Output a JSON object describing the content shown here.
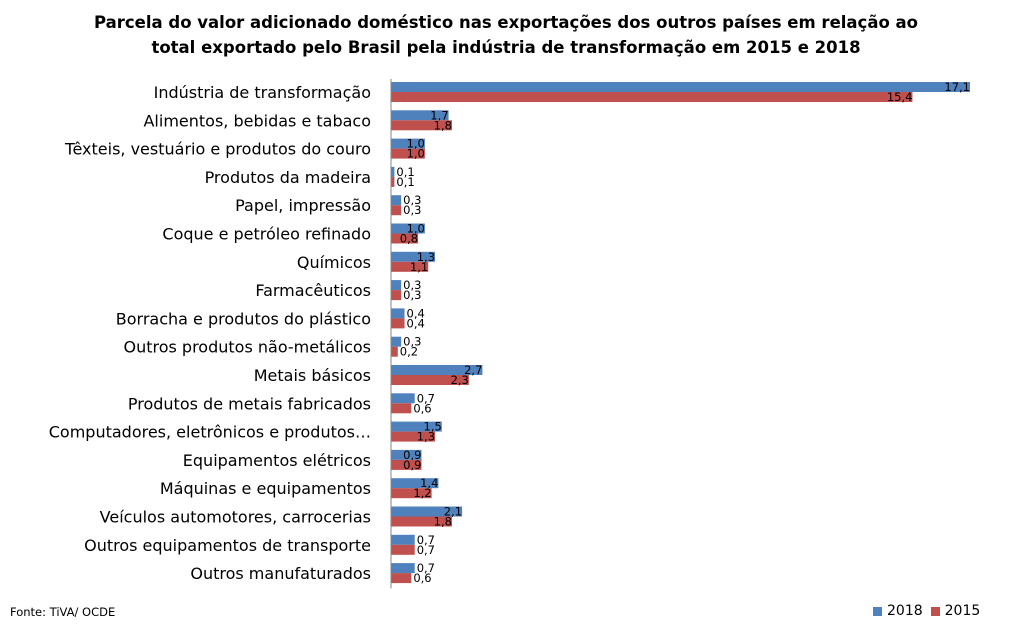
{
  "chart_data": {
    "type": "bar",
    "orientation": "horizontal",
    "title_lines": [
      "Parcela do valor adicionado  doméstico nas exportações dos outros  países em relação ao",
      "total exportado  pelo Brasil pela indústria  de transformação  em 2015 e 2018"
    ],
    "categories": [
      "Indústria de transformação",
      "Alimentos, bebidas e tabaco",
      "Têxteis, vestuário e produtos do couro",
      "Produtos da madeira",
      "Papel, impressão",
      "Coque e petróleo refinado",
      "Químicos",
      "Farmacêuticos",
      "Borracha e produtos do plástico",
      "Outros produtos não-metálicos",
      "Metais básicos",
      "Produtos de metais fabricados",
      "Computadores, eletrônicos e produtos…",
      "Equipamentos elétricos",
      "Máquinas e equipamentos",
      "Veículos automotores, carrocerias",
      "Outros equipamentos de transporte",
      "Outros  manufaturados"
    ],
    "series": [
      {
        "name": "2018",
        "color": "#4f81bd",
        "values": [
          17.1,
          1.7,
          1.0,
          0.1,
          0.3,
          1.0,
          1.3,
          0.3,
          0.4,
          0.3,
          2.7,
          0.7,
          1.5,
          0.9,
          1.4,
          2.1,
          0.7,
          0.7
        ],
        "labels": [
          "17,1",
          "1,7",
          "1,0",
          "0,1",
          "0,3",
          "1,0",
          "1,3",
          "0,3",
          "0,4",
          "0,3",
          "2,7",
          "0,7",
          "1,5",
          "0,9",
          "1,4",
          "2,1",
          "0,7",
          "0,7"
        ]
      },
      {
        "name": "2015",
        "color": "#c0504d",
        "values": [
          15.4,
          1.8,
          1.0,
          0.1,
          0.3,
          0.8,
          1.1,
          0.3,
          0.4,
          0.2,
          2.3,
          0.6,
          1.3,
          0.9,
          1.2,
          1.8,
          0.7,
          0.6
        ],
        "labels": [
          "15,4",
          "1,8",
          "1,0",
          "0,1",
          "0,3",
          "0,8",
          "1,1",
          "0,3",
          "0,4",
          "0,2",
          "2,3",
          "0,6",
          "1,3",
          "0,9",
          "1,2",
          "1,8",
          "0,7",
          "0,6"
        ]
      }
    ],
    "xlim": [
      0,
      18
    ],
    "legend_position": "bottom-right",
    "grid": false
  },
  "footer": {
    "source": "Fonte: TiVA/ OCDE"
  },
  "legend": [
    {
      "name": "2018",
      "color": "#4f81bd"
    },
    {
      "name": "2015",
      "color": "#c0504d"
    }
  ]
}
